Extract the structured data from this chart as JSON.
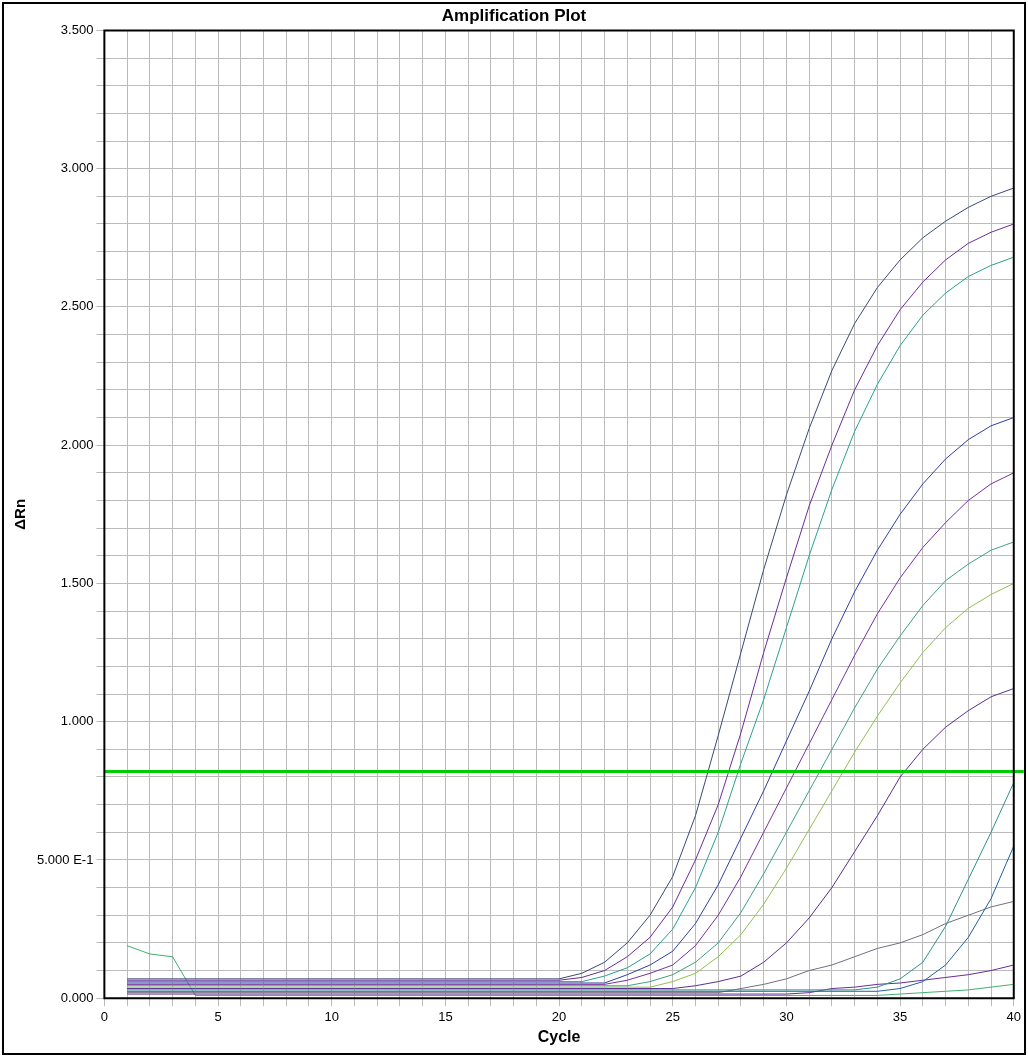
{
  "chart_data": {
    "type": "line",
    "title": "Amplification Plot",
    "xlabel": "Cycle",
    "ylabel": "ΔRn",
    "x": [
      1,
      2,
      3,
      4,
      5,
      6,
      7,
      8,
      9,
      10,
      11,
      12,
      13,
      14,
      15,
      16,
      17,
      18,
      19,
      20,
      21,
      22,
      23,
      24,
      25,
      26,
      27,
      28,
      29,
      30,
      31,
      32,
      33,
      34,
      35,
      36,
      37,
      38,
      39,
      40
    ],
    "series": [
      {
        "color": "#3a4a7a",
        "values": [
          0.07,
          0.07,
          0.07,
          0.07,
          0.07,
          0.07,
          0.07,
          0.07,
          0.07,
          0.07,
          0.07,
          0.07,
          0.07,
          0.07,
          0.07,
          0.07,
          0.07,
          0.07,
          0.07,
          0.07,
          0.09,
          0.13,
          0.2,
          0.3,
          0.44,
          0.66,
          0.95,
          1.25,
          1.55,
          1.82,
          2.06,
          2.27,
          2.44,
          2.57,
          2.67,
          2.75,
          2.81,
          2.86,
          2.9,
          2.93
        ]
      },
      {
        "color": "#6a2c9a",
        "values": [
          0.065,
          0.065,
          0.065,
          0.065,
          0.065,
          0.065,
          0.065,
          0.065,
          0.065,
          0.065,
          0.065,
          0.065,
          0.065,
          0.065,
          0.065,
          0.065,
          0.065,
          0.065,
          0.065,
          0.065,
          0.075,
          0.1,
          0.15,
          0.22,
          0.33,
          0.5,
          0.7,
          0.96,
          1.25,
          1.52,
          1.78,
          2.0,
          2.2,
          2.36,
          2.49,
          2.59,
          2.67,
          2.73,
          2.77,
          2.8
        ]
      },
      {
        "color": "#2aa090",
        "values": [
          0.06,
          0.06,
          0.06,
          0.06,
          0.06,
          0.06,
          0.06,
          0.06,
          0.06,
          0.06,
          0.06,
          0.06,
          0.06,
          0.06,
          0.06,
          0.06,
          0.06,
          0.06,
          0.06,
          0.06,
          0.06,
          0.08,
          0.11,
          0.16,
          0.25,
          0.4,
          0.6,
          0.85,
          1.08,
          1.34,
          1.6,
          1.84,
          2.05,
          2.22,
          2.36,
          2.47,
          2.55,
          2.61,
          2.65,
          2.68
        ]
      },
      {
        "color": "#3040a0",
        "values": [
          0.055,
          0.055,
          0.055,
          0.055,
          0.055,
          0.055,
          0.055,
          0.055,
          0.055,
          0.055,
          0.055,
          0.055,
          0.055,
          0.055,
          0.055,
          0.055,
          0.055,
          0.055,
          0.055,
          0.055,
          0.055,
          0.055,
          0.085,
          0.12,
          0.17,
          0.27,
          0.41,
          0.58,
          0.75,
          0.93,
          1.11,
          1.3,
          1.47,
          1.62,
          1.75,
          1.86,
          1.95,
          2.02,
          2.07,
          2.1
        ]
      },
      {
        "color": "#7a30a0",
        "values": [
          0.05,
          0.05,
          0.05,
          0.05,
          0.05,
          0.05,
          0.05,
          0.05,
          0.05,
          0.05,
          0.05,
          0.05,
          0.05,
          0.05,
          0.05,
          0.05,
          0.05,
          0.05,
          0.05,
          0.05,
          0.05,
          0.05,
          0.065,
          0.09,
          0.12,
          0.19,
          0.3,
          0.44,
          0.6,
          0.76,
          0.92,
          1.08,
          1.24,
          1.39,
          1.52,
          1.63,
          1.72,
          1.8,
          1.86,
          1.9
        ]
      },
      {
        "color": "#40a080",
        "values": [
          0.045,
          0.045,
          0.045,
          0.045,
          0.045,
          0.045,
          0.045,
          0.045,
          0.045,
          0.045,
          0.045,
          0.045,
          0.045,
          0.045,
          0.045,
          0.045,
          0.045,
          0.045,
          0.045,
          0.045,
          0.045,
          0.045,
          0.045,
          0.06,
          0.085,
          0.13,
          0.2,
          0.31,
          0.45,
          0.6,
          0.75,
          0.9,
          1.05,
          1.19,
          1.31,
          1.42,
          1.51,
          1.57,
          1.62,
          1.65
        ]
      },
      {
        "color": "#90c050",
        "values": [
          0.04,
          0.04,
          0.04,
          0.04,
          0.04,
          0.04,
          0.04,
          0.04,
          0.04,
          0.04,
          0.04,
          0.04,
          0.04,
          0.04,
          0.04,
          0.04,
          0.04,
          0.04,
          0.04,
          0.04,
          0.04,
          0.04,
          0.04,
          0.04,
          0.06,
          0.09,
          0.15,
          0.23,
          0.34,
          0.47,
          0.61,
          0.75,
          0.89,
          1.02,
          1.14,
          1.25,
          1.34,
          1.41,
          1.46,
          1.5
        ]
      },
      {
        "color": "#5a3090",
        "values": [
          0.035,
          0.035,
          0.035,
          0.035,
          0.035,
          0.035,
          0.035,
          0.035,
          0.035,
          0.035,
          0.035,
          0.035,
          0.035,
          0.035,
          0.035,
          0.035,
          0.035,
          0.035,
          0.035,
          0.035,
          0.035,
          0.035,
          0.035,
          0.035,
          0.035,
          0.045,
          0.06,
          0.08,
          0.13,
          0.2,
          0.29,
          0.4,
          0.53,
          0.66,
          0.8,
          0.9,
          0.98,
          1.04,
          1.09,
          1.12
        ]
      },
      {
        "color": "#30908a",
        "values": [
          0.03,
          0.03,
          0.03,
          0.03,
          0.03,
          0.03,
          0.03,
          0.03,
          0.03,
          0.03,
          0.03,
          0.03,
          0.03,
          0.03,
          0.03,
          0.03,
          0.03,
          0.03,
          0.03,
          0.03,
          0.03,
          0.03,
          0.03,
          0.03,
          0.03,
          0.03,
          0.03,
          0.03,
          0.03,
          0.03,
          0.03,
          0.03,
          0.03,
          0.04,
          0.07,
          0.13,
          0.26,
          0.43,
          0.6,
          0.78
        ]
      },
      {
        "color": "#2060a0",
        "values": [
          0.025,
          0.025,
          0.025,
          0.025,
          0.025,
          0.025,
          0.025,
          0.025,
          0.025,
          0.025,
          0.025,
          0.025,
          0.025,
          0.025,
          0.025,
          0.025,
          0.025,
          0.025,
          0.025,
          0.025,
          0.025,
          0.025,
          0.025,
          0.025,
          0.025,
          0.025,
          0.025,
          0.025,
          0.025,
          0.025,
          0.025,
          0.025,
          0.025,
          0.025,
          0.035,
          0.06,
          0.12,
          0.22,
          0.36,
          0.55
        ]
      },
      {
        "color": "#707080",
        "values": [
          0.02,
          0.02,
          0.02,
          0.02,
          0.02,
          0.02,
          0.02,
          0.02,
          0.02,
          0.02,
          0.02,
          0.02,
          0.02,
          0.02,
          0.02,
          0.02,
          0.02,
          0.02,
          0.02,
          0.02,
          0.02,
          0.02,
          0.02,
          0.02,
          0.02,
          0.02,
          0.02,
          0.035,
          0.05,
          0.07,
          0.1,
          0.12,
          0.15,
          0.18,
          0.2,
          0.23,
          0.27,
          0.3,
          0.33,
          0.35
        ]
      },
      {
        "color": "#6a2c9a",
        "values": [
          0.015,
          0.015,
          0.015,
          0.015,
          0.015,
          0.015,
          0.015,
          0.015,
          0.015,
          0.015,
          0.015,
          0.015,
          0.015,
          0.015,
          0.015,
          0.015,
          0.015,
          0.015,
          0.015,
          0.015,
          0.015,
          0.015,
          0.015,
          0.015,
          0.015,
          0.015,
          0.015,
          0.015,
          0.015,
          0.015,
          0.02,
          0.035,
          0.04,
          0.05,
          0.055,
          0.065,
          0.075,
          0.085,
          0.1,
          0.12
        ]
      },
      {
        "color": "#40b070",
        "values": [
          0.19,
          0.16,
          0.15,
          0.01,
          0.01,
          0.01,
          0.01,
          0.01,
          0.01,
          0.01,
          0.01,
          0.01,
          0.01,
          0.01,
          0.01,
          0.01,
          0.01,
          0.01,
          0.01,
          0.01,
          0.01,
          0.01,
          0.01,
          0.01,
          0.01,
          0.01,
          0.01,
          0.01,
          0.01,
          0.01,
          0.01,
          0.01,
          0.01,
          0.01,
          0.015,
          0.02,
          0.025,
          0.03,
          0.04,
          0.05
        ]
      }
    ],
    "marker": "none",
    "grid": true,
    "xlim": [
      0,
      40
    ],
    "xticks": [
      0,
      {
        "value": 1,
        "label": null
      },
      {
        "value": 2,
        "label": null
      },
      {
        "value": 3,
        "label": null
      },
      {
        "value": 4,
        "label": null
      },
      5,
      {
        "value": 6,
        "label": null
      },
      {
        "value": 7,
        "label": null
      },
      {
        "value": 8,
        "label": null
      },
      {
        "value": 9,
        "label": null
      },
      10,
      {
        "value": 11,
        "label": null
      },
      {
        "value": 12,
        "label": null
      },
      {
        "value": 13,
        "label": null
      },
      {
        "value": 14,
        "label": null
      },
      15,
      {
        "value": 16,
        "label": null
      },
      {
        "value": 17,
        "label": null
      },
      {
        "value": 18,
        "label": null
      },
      {
        "value": 19,
        "label": null
      },
      20,
      {
        "value": 21,
        "label": null
      },
      {
        "value": 22,
        "label": null
      },
      {
        "value": 23,
        "label": null
      },
      {
        "value": 24,
        "label": null
      },
      25,
      {
        "value": 26,
        "label": null
      },
      {
        "value": 27,
        "label": null
      },
      {
        "value": 28,
        "label": null
      },
      {
        "value": 29,
        "label": null
      },
      30,
      {
        "value": 31,
        "label": null
      },
      {
        "value": 32,
        "label": null
      },
      {
        "value": 33,
        "label": null
      },
      {
        "value": 34,
        "label": null
      },
      35,
      {
        "value": 36,
        "label": null
      },
      {
        "value": 37,
        "label": null
      },
      {
        "value": 38,
        "label": null
      },
      {
        "value": 39,
        "label": null
      },
      40
    ],
    "ylim": [
      0,
      3.5
    ],
    "yticks": [
      {
        "value": 0,
        "label": "0.000"
      },
      {
        "value": 0.1,
        "label": null
      },
      {
        "value": 0.2,
        "label": null
      },
      {
        "value": 0.3,
        "label": null
      },
      {
        "value": 0.4,
        "label": null
      },
      {
        "value": 0.5,
        "label": "5.000 E-1"
      },
      {
        "value": 0.6,
        "label": null
      },
      {
        "value": 0.7,
        "label": null
      },
      {
        "value": 0.8,
        "label": null
      },
      {
        "value": 0.9,
        "label": null
      },
      {
        "value": 1,
        "label": "1.000"
      },
      {
        "value": 1.1,
        "label": null
      },
      {
        "value": 1.2,
        "label": null
      },
      {
        "value": 1.3,
        "label": null
      },
      {
        "value": 1.4,
        "label": null
      },
      {
        "value": 1.5,
        "label": "1.500"
      },
      {
        "value": 1.6,
        "label": null
      },
      {
        "value": 1.7,
        "label": null
      },
      {
        "value": 1.8,
        "label": null
      },
      {
        "value": 1.9,
        "label": null
      },
      {
        "value": 2,
        "label": "2.000"
      },
      {
        "value": 2.1,
        "label": null
      },
      {
        "value": 2.2,
        "label": null
      },
      {
        "value": 2.3,
        "label": null
      },
      {
        "value": 2.4,
        "label": null
      },
      {
        "value": 2.5,
        "label": "2.500"
      },
      {
        "value": 2.6,
        "label": null
      },
      {
        "value": 2.7,
        "label": null
      },
      {
        "value": 2.8,
        "label": null
      },
      {
        "value": 2.9,
        "label": null
      },
      {
        "value": 3,
        "label": "3.000"
      },
      {
        "value": 3.1,
        "label": null
      },
      {
        "value": 3.2,
        "label": null
      },
      {
        "value": 3.3,
        "label": null
      },
      {
        "value": 3.4,
        "label": null
      },
      {
        "value": 3.5,
        "label": "3.500"
      }
    ],
    "ref_lines": [
      {
        "axis": "y",
        "value": 0.82,
        "color": "#00cc00"
      }
    ]
  }
}
